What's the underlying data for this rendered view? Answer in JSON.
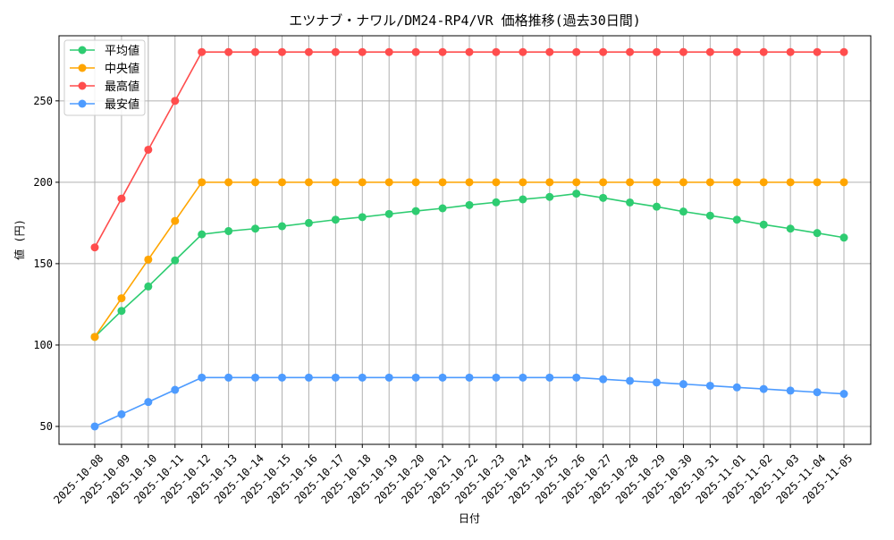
{
  "chart_data": {
    "type": "line",
    "title": "エツナブ・ナワル/DM24-RP4/VR 価格推移(過去30日間)",
    "xlabel": "日付",
    "ylabel": "値 (円)",
    "ylim": [
      39,
      290
    ],
    "yticks": [
      50,
      100,
      150,
      200,
      250
    ],
    "grid": true,
    "legend_position": "top-left",
    "x": [
      "2025-10-08",
      "2025-10-09",
      "2025-10-10",
      "2025-10-11",
      "2025-10-12",
      "2025-10-13",
      "2025-10-14",
      "2025-10-15",
      "2025-10-16",
      "2025-10-17",
      "2025-10-18",
      "2025-10-19",
      "2025-10-20",
      "2025-10-21",
      "2025-10-22",
      "2025-10-23",
      "2025-10-24",
      "2025-10-25",
      "2025-10-26",
      "2025-10-27",
      "2025-10-28",
      "2025-10-29",
      "2025-10-30",
      "2025-10-31",
      "2025-11-01",
      "2025-11-02",
      "2025-11-03",
      "2025-11-04",
      "2025-11-05"
    ],
    "series": [
      {
        "name": "平均値",
        "color": "#2ecc71",
        "values": [
          105,
          121,
          136,
          152,
          168,
          170,
          171.5,
          173,
          175,
          177,
          178.6,
          180.5,
          182.3,
          184,
          186,
          187.7,
          189.5,
          191,
          193,
          190.4,
          187.6,
          185,
          182,
          179.5,
          177,
          174,
          171.5,
          168.8,
          166
        ]
      },
      {
        "name": "中央値",
        "color": "#ffa500",
        "values": [
          105,
          128.75,
          152.5,
          176.25,
          200,
          200,
          200,
          200,
          200,
          200,
          200,
          200,
          200,
          200,
          200,
          200,
          200,
          200,
          200,
          200,
          200,
          200,
          200,
          200,
          200,
          200,
          200,
          200,
          200
        ]
      },
      {
        "name": "最高値",
        "color": "#ff4d4d",
        "values": [
          160,
          190,
          220,
          250,
          280,
          280,
          280,
          280,
          280,
          280,
          280,
          280,
          280,
          280,
          280,
          280,
          280,
          280,
          280,
          280,
          280,
          280,
          280,
          280,
          280,
          280,
          280,
          280,
          280
        ]
      },
      {
        "name": "最安値",
        "color": "#4d9bff",
        "values": [
          50,
          57.5,
          65,
          72.5,
          80,
          80,
          80,
          80,
          80,
          80,
          80,
          80,
          80,
          80,
          80,
          80,
          80,
          80,
          80,
          79,
          78,
          77,
          76,
          75,
          74,
          73,
          72,
          71,
          70
        ]
      }
    ]
  }
}
